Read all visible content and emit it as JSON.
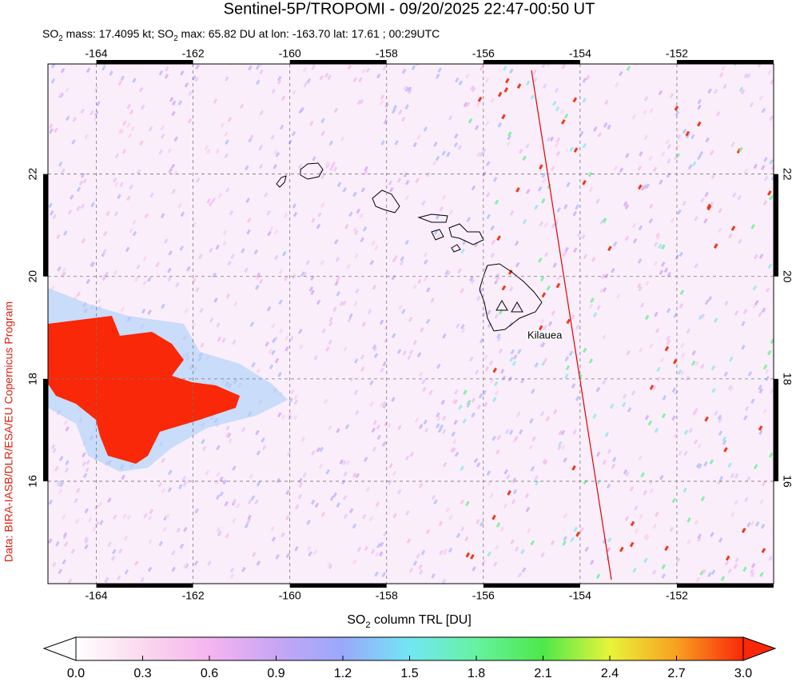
{
  "title": "Sentinel-5P/TROPOMI - 09/20/2025 22:47-00:50 UT",
  "subtitle_parts": [
    "SO",
    "2",
    " mass: 17.4095 kt; SO",
    "2",
    " max: 65.82 DU at lon: -163.70 lat: 17.61 ; 00:29UTC"
  ],
  "credit": "Data: BIRA-IASB/DLR/ESA/EU Copernicus Program",
  "map": {
    "xlim": [
      -165,
      -150
    ],
    "ylim": [
      14,
      24.15
    ],
    "xticks": [
      -164,
      -162,
      -160,
      -158,
      -156,
      -154,
      -152
    ],
    "yticks": [
      16,
      18,
      20,
      22
    ],
    "volcano": "Kilauea"
  },
  "colorbar": {
    "label_parts": [
      "SO",
      "2",
      " column TRL [DU]"
    ],
    "lim": [
      0,
      3
    ],
    "ticks": [
      {
        "value": 0,
        "label": "0.0"
      },
      {
        "value": 0.3,
        "label": "0.3"
      },
      {
        "value": 0.6,
        "label": "0.6"
      },
      {
        "value": 0.9,
        "label": "0.9"
      },
      {
        "value": 1.2,
        "label": "1.2"
      },
      {
        "value": 1.5,
        "label": "1.5"
      },
      {
        "value": 1.8,
        "label": "1.8"
      },
      {
        "value": 2.1,
        "label": "2.1"
      },
      {
        "value": 2.4,
        "label": "2.4"
      },
      {
        "value": 2.7,
        "label": "2.7"
      },
      {
        "value": 3.0,
        "label": "3.0"
      }
    ]
  }
}
